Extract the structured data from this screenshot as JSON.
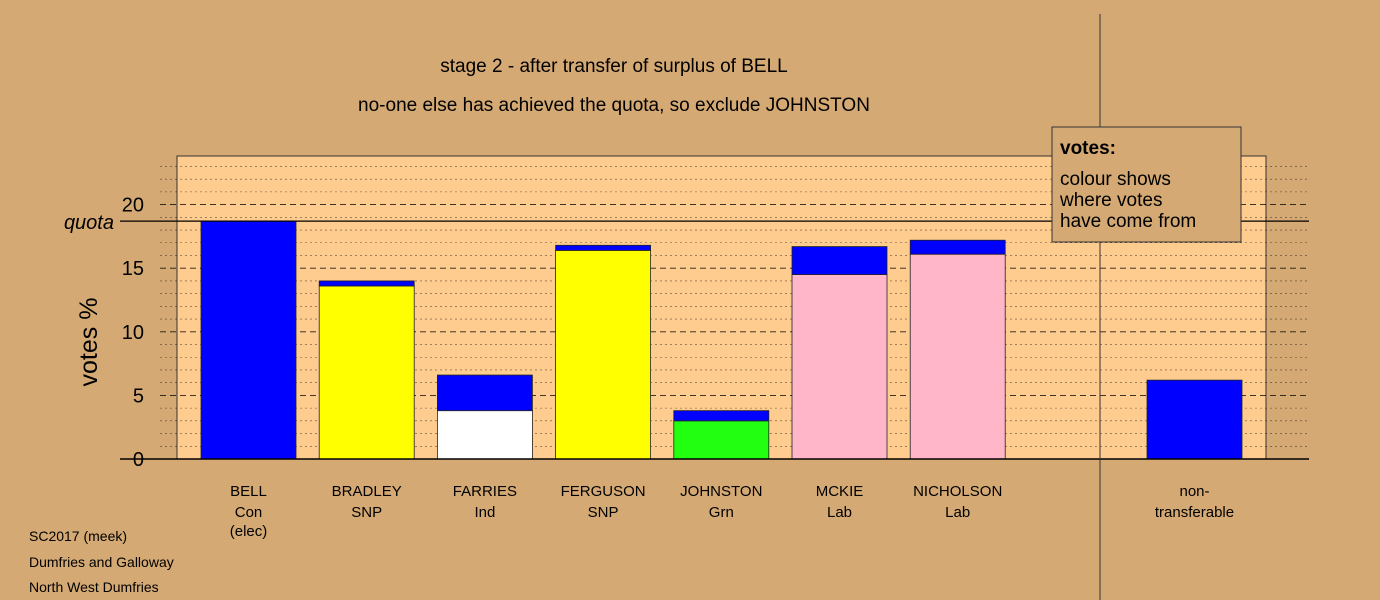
{
  "chart_data": {
    "type": "bar",
    "title": "stage 2 - after transfer of surplus of BELL",
    "subtitle": "no-one else has achieved the quota, so exclude JOHNSTON",
    "ylabel": "votes %",
    "ylim": [
      0,
      24
    ],
    "yticks": [
      "0",
      "5",
      "10",
      "15",
      "20"
    ],
    "quota_label": "quota",
    "quota_value": 18.7,
    "legend": {
      "heading": "votes:",
      "lines": [
        "colour shows",
        "where votes",
        "have come from"
      ]
    },
    "candidates": [
      {
        "name": "BELL",
        "party": "Con",
        "note": "(elec)",
        "segments": [
          {
            "value": 18.7,
            "color": "#0000FF"
          }
        ]
      },
      {
        "name": "BRADLEY",
        "party": "SNP",
        "note": "",
        "segments": [
          {
            "value": 13.6,
            "color": "#FFFF00"
          },
          {
            "value": 0.4,
            "color": "#0000FF"
          }
        ]
      },
      {
        "name": "FARRIES",
        "party": "Ind",
        "note": "",
        "segments": [
          {
            "value": 3.8,
            "color": "#FFFFFF"
          },
          {
            "value": 2.8,
            "color": "#0000FF"
          }
        ]
      },
      {
        "name": "FERGUSON",
        "party": "SNP",
        "note": "",
        "segments": [
          {
            "value": 16.4,
            "color": "#FFFF00"
          },
          {
            "value": 0.4,
            "color": "#0000FF"
          }
        ]
      },
      {
        "name": "JOHNSTON",
        "party": "Grn",
        "note": "",
        "segments": [
          {
            "value": 3.0,
            "color": "#22FF11"
          },
          {
            "value": 0.8,
            "color": "#0000FF"
          }
        ]
      },
      {
        "name": "MCKIE",
        "party": "Lab",
        "note": "",
        "segments": [
          {
            "value": 14.5,
            "color": "#FFB6C8"
          },
          {
            "value": 2.2,
            "color": "#0000FF"
          }
        ]
      },
      {
        "name": "NICHOLSON",
        "party": "Lab",
        "note": "",
        "segments": [
          {
            "value": 16.1,
            "color": "#FFB6C8"
          },
          {
            "value": 1.1,
            "color": "#0000FF"
          }
        ]
      }
    ],
    "nontransferable": {
      "label_line1": "non-",
      "label_line2": "transferable",
      "value": 6.2,
      "color": "#0000FF"
    },
    "colors": {
      "background": "#D4A974",
      "plot_area": "#FFCC90",
      "legend_box": "#D4A974"
    }
  },
  "footer": {
    "line1": "SC2017 (meek)",
    "line2": "Dumfries and Galloway",
    "line3": "North West Dumfries"
  }
}
